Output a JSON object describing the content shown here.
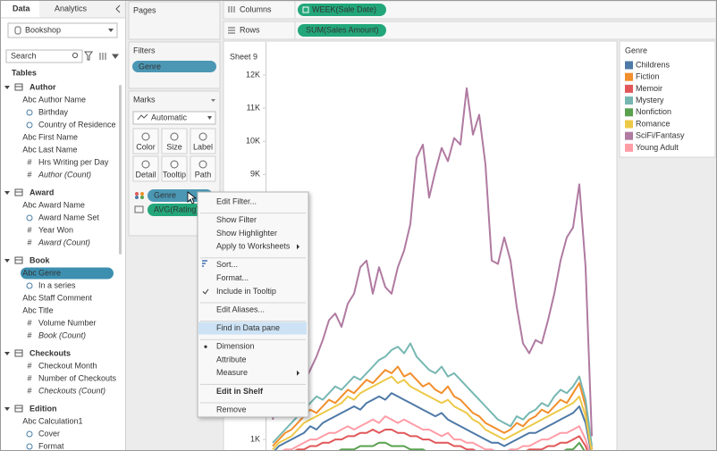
{
  "tabs": [
    "Data",
    "Analytics"
  ],
  "data_source": "Bookshop",
  "search_placeholder": "Search",
  "tables_heading": "Tables",
  "tables": [
    {
      "name": "Author",
      "fields": [
        {
          "icon": "Abc",
          "name": "Author Name"
        },
        {
          "name": "Birthday"
        },
        {
          "name": "Country of Residence"
        },
        {
          "icon": "Abc",
          "name": "First Name"
        },
        {
          "icon": "Abc",
          "name": "Last Name"
        },
        {
          "icon": "#",
          "name": "Hrs Writing per Day"
        },
        {
          "icon": "#",
          "name": "Author (Count)",
          "italic": true
        }
      ]
    },
    {
      "name": "Award",
      "fields": [
        {
          "icon": "Abc",
          "name": "Award Name"
        },
        {
          "name": "Award Name Set"
        },
        {
          "icon": "#",
          "name": "Year Won"
        },
        {
          "icon": "#",
          "name": "Award (Count)",
          "italic": true
        }
      ]
    },
    {
      "name": "Book",
      "fields": [
        {
          "icon": "Abc",
          "name": "Genre",
          "selected": true
        },
        {
          "name": "In a series"
        },
        {
          "icon": "Abc",
          "name": "Staff Comment"
        },
        {
          "icon": "Abc",
          "name": "Title"
        },
        {
          "icon": "#",
          "name": "Volume Number"
        },
        {
          "icon": "#",
          "name": "Book (Count)",
          "italic": true
        }
      ]
    },
    {
      "name": "Checkouts",
      "fields": [
        {
          "icon": "#",
          "name": "Checkout Month"
        },
        {
          "icon": "#",
          "name": "Number of Checkouts"
        },
        {
          "icon": "#",
          "name": "Checkouts (Count)",
          "italic": true
        }
      ]
    },
    {
      "name": "Edition",
      "fields": [
        {
          "icon": "Abc",
          "name": "Calculation1"
        },
        {
          "name": "Cover"
        },
        {
          "name": "Format"
        }
      ]
    }
  ],
  "pages_label": "Pages",
  "filters": {
    "label": "Filters",
    "pills": [
      "Genre"
    ]
  },
  "marks": {
    "label": "Marks",
    "mark_type": "Automatic",
    "buttons": [
      "Color",
      "Size",
      "Label",
      "Detail",
      "Tooltip",
      "Path"
    ],
    "pills": [
      "Genre",
      "AVG(Rating)"
    ]
  },
  "columns": {
    "label": "Columns",
    "pill": "WEEK(Sale Date)"
  },
  "rows": {
    "label": "Rows",
    "pill": "SUM(Sales Amount)"
  },
  "chart_data": {
    "type": "line",
    "title": "Sheet 9",
    "legend_title": "Genre",
    "grid": false,
    "ylim": [
      0,
      12500
    ],
    "yticks": [
      {
        "value": 1000,
        "label": "1K"
      },
      {
        "value": 9000,
        "label": "9K"
      },
      {
        "value": 10000,
        "label": "10K"
      },
      {
        "value": 11000,
        "label": "11K"
      },
      {
        "value": 12000,
        "label": "12K"
      }
    ],
    "series": [
      {
        "name": "Childrens",
        "color": "#4e79a7",
        "values": [
          600,
          800,
          900,
          1000,
          1100,
          1200,
          1400,
          1300,
          1500,
          1600,
          1700,
          1800,
          1900,
          2000,
          1900,
          2100,
          2200,
          2300,
          2200,
          2400,
          2300,
          2200,
          2100,
          2000,
          1900,
          1800,
          1700,
          1800,
          1600,
          1500,
          1400,
          1300,
          1200,
          1100,
          1000,
          900,
          900,
          800,
          900,
          1000,
          1100,
          1200,
          1200,
          1300,
          1400,
          1500,
          1600,
          1700,
          1800,
          2000,
          1500,
          500
        ]
      },
      {
        "name": "Fiction",
        "color": "#f28e2b",
        "values": [
          800,
          1000,
          1200,
          1300,
          1500,
          1700,
          1900,
          1800,
          2000,
          2200,
          2100,
          2300,
          2500,
          2400,
          2600,
          2800,
          2700,
          2900,
          3100,
          3000,
          3200,
          2900,
          3000,
          2800,
          2600,
          2700,
          2500,
          2400,
          2600,
          2300,
          2200,
          2000,
          1800,
          1700,
          1500,
          1400,
          1300,
          1200,
          1300,
          1500,
          1400,
          1600,
          1700,
          1900,
          1800,
          2000,
          2200,
          2100,
          2400,
          2700,
          2000,
          700
        ]
      },
      {
        "name": "Memoir",
        "color": "#e15759",
        "values": [
          400,
          500,
          500,
          600,
          700,
          700,
          800,
          800,
          900,
          900,
          1000,
          1000,
          1100,
          1100,
          1200,
          1200,
          1300,
          1200,
          1300,
          1300,
          1200,
          1200,
          1100,
          1100,
          1000,
          1000,
          900,
          900,
          900,
          800,
          800,
          700,
          700,
          600,
          600,
          500,
          500,
          500,
          500,
          600,
          600,
          700,
          700,
          700,
          800,
          800,
          900,
          900,
          1000,
          1100,
          800,
          300
        ]
      },
      {
        "name": "Mystery",
        "color": "#76b7b2",
        "values": [
          900,
          1100,
          1300,
          1500,
          1700,
          1900,
          2100,
          2300,
          2200,
          2400,
          2600,
          2500,
          2700,
          2900,
          2800,
          3000,
          3200,
          3400,
          3500,
          3700,
          3800,
          3600,
          3900,
          3500,
          3300,
          3100,
          3000,
          3200,
          2900,
          3000,
          2800,
          2600,
          2400,
          2200,
          2000,
          1800,
          1600,
          1500,
          1400,
          1700,
          1600,
          1800,
          1900,
          2100,
          2000,
          2300,
          2500,
          2400,
          2600,
          2900,
          2200,
          800
        ]
      },
      {
        "name": "Nonfiction",
        "color": "#59a14f",
        "values": [
          300,
          300,
          400,
          400,
          400,
          500,
          500,
          500,
          600,
          600,
          600,
          700,
          700,
          700,
          800,
          800,
          800,
          900,
          900,
          800,
          800,
          800,
          700,
          700,
          700,
          600,
          600,
          600,
          600,
          500,
          500,
          500,
          400,
          400,
          400,
          400,
          300,
          300,
          300,
          400,
          400,
          400,
          500,
          500,
          500,
          600,
          600,
          700,
          700,
          900,
          600,
          200
        ]
      },
      {
        "name": "Romance",
        "color": "#edc948",
        "values": [
          700,
          900,
          1000,
          1100,
          1300,
          1500,
          1600,
          1700,
          1800,
          1900,
          2000,
          2100,
          2300,
          2200,
          2400,
          2500,
          2600,
          2700,
          2800,
          2900,
          2700,
          2800,
          2600,
          2500,
          2400,
          2300,
          2200,
          2100,
          2200,
          2000,
          1900,
          1800,
          1600,
          1500,
          1300,
          1200,
          1100,
          1000,
          1100,
          1200,
          1300,
          1400,
          1500,
          1600,
          1700,
          1800,
          1900,
          2000,
          2100,
          2300,
          1700,
          600
        ]
      },
      {
        "name": "SciFi/Fantasy",
        "color": "#b07aa1",
        "values": [
          1600,
          2400,
          2900,
          3500,
          4000,
          2700,
          3100,
          3500,
          4000,
          4600,
          4800,
          4400,
          5100,
          5400,
          6200,
          6400,
          5400,
          6200,
          5600,
          5400,
          6200,
          6700,
          7500,
          9500,
          9900,
          8300,
          9100,
          9800,
          9400,
          10100,
          9900,
          11600,
          10200,
          10800,
          9300,
          6400,
          6300,
          7100,
          6400,
          5000,
          3900,
          3600,
          4000,
          3900,
          4600,
          5400,
          6400,
          7100,
          7400,
          8700,
          6200,
          1100
        ]
      },
      {
        "name": "Young Adult",
        "color": "#ff9da7",
        "values": [
          500,
          600,
          700,
          700,
          800,
          900,
          1000,
          1000,
          1100,
          1200,
          1200,
          1300,
          1400,
          1300,
          1400,
          1500,
          1600,
          1500,
          1700,
          1600,
          1500,
          1600,
          1500,
          1400,
          1300,
          1300,
          1200,
          1100,
          1200,
          1000,
          1000,
          900,
          900,
          800,
          700,
          700,
          600,
          600,
          700,
          700,
          800,
          800,
          900,
          1000,
          1000,
          1100,
          1200,
          1200,
          1300,
          1400,
          1000,
          400
        ]
      }
    ]
  },
  "context_menu": [
    {
      "label": "Edit Filter..."
    },
    {
      "label": "Show Filter",
      "separator_before": true
    },
    {
      "label": "Show Highlighter"
    },
    {
      "label": "Apply to Worksheets",
      "submenu": true
    },
    {
      "label": "Sort...",
      "separator_before": true
    },
    {
      "label": "Format..."
    },
    {
      "label": "Include in Tooltip",
      "checked": true
    },
    {
      "label": "Edit Aliases...",
      "separator_before": true
    },
    {
      "label": "Find in Data pane",
      "separator_before": true,
      "highlighted": true
    },
    {
      "label": "Dimension",
      "separator_before": true,
      "bullet": true
    },
    {
      "label": "Attribute"
    },
    {
      "label": "Measure",
      "submenu": true
    },
    {
      "label": "Edit in Shelf",
      "separator_before": true,
      "bold": true
    },
    {
      "label": "Remove",
      "separator_before": true
    }
  ]
}
